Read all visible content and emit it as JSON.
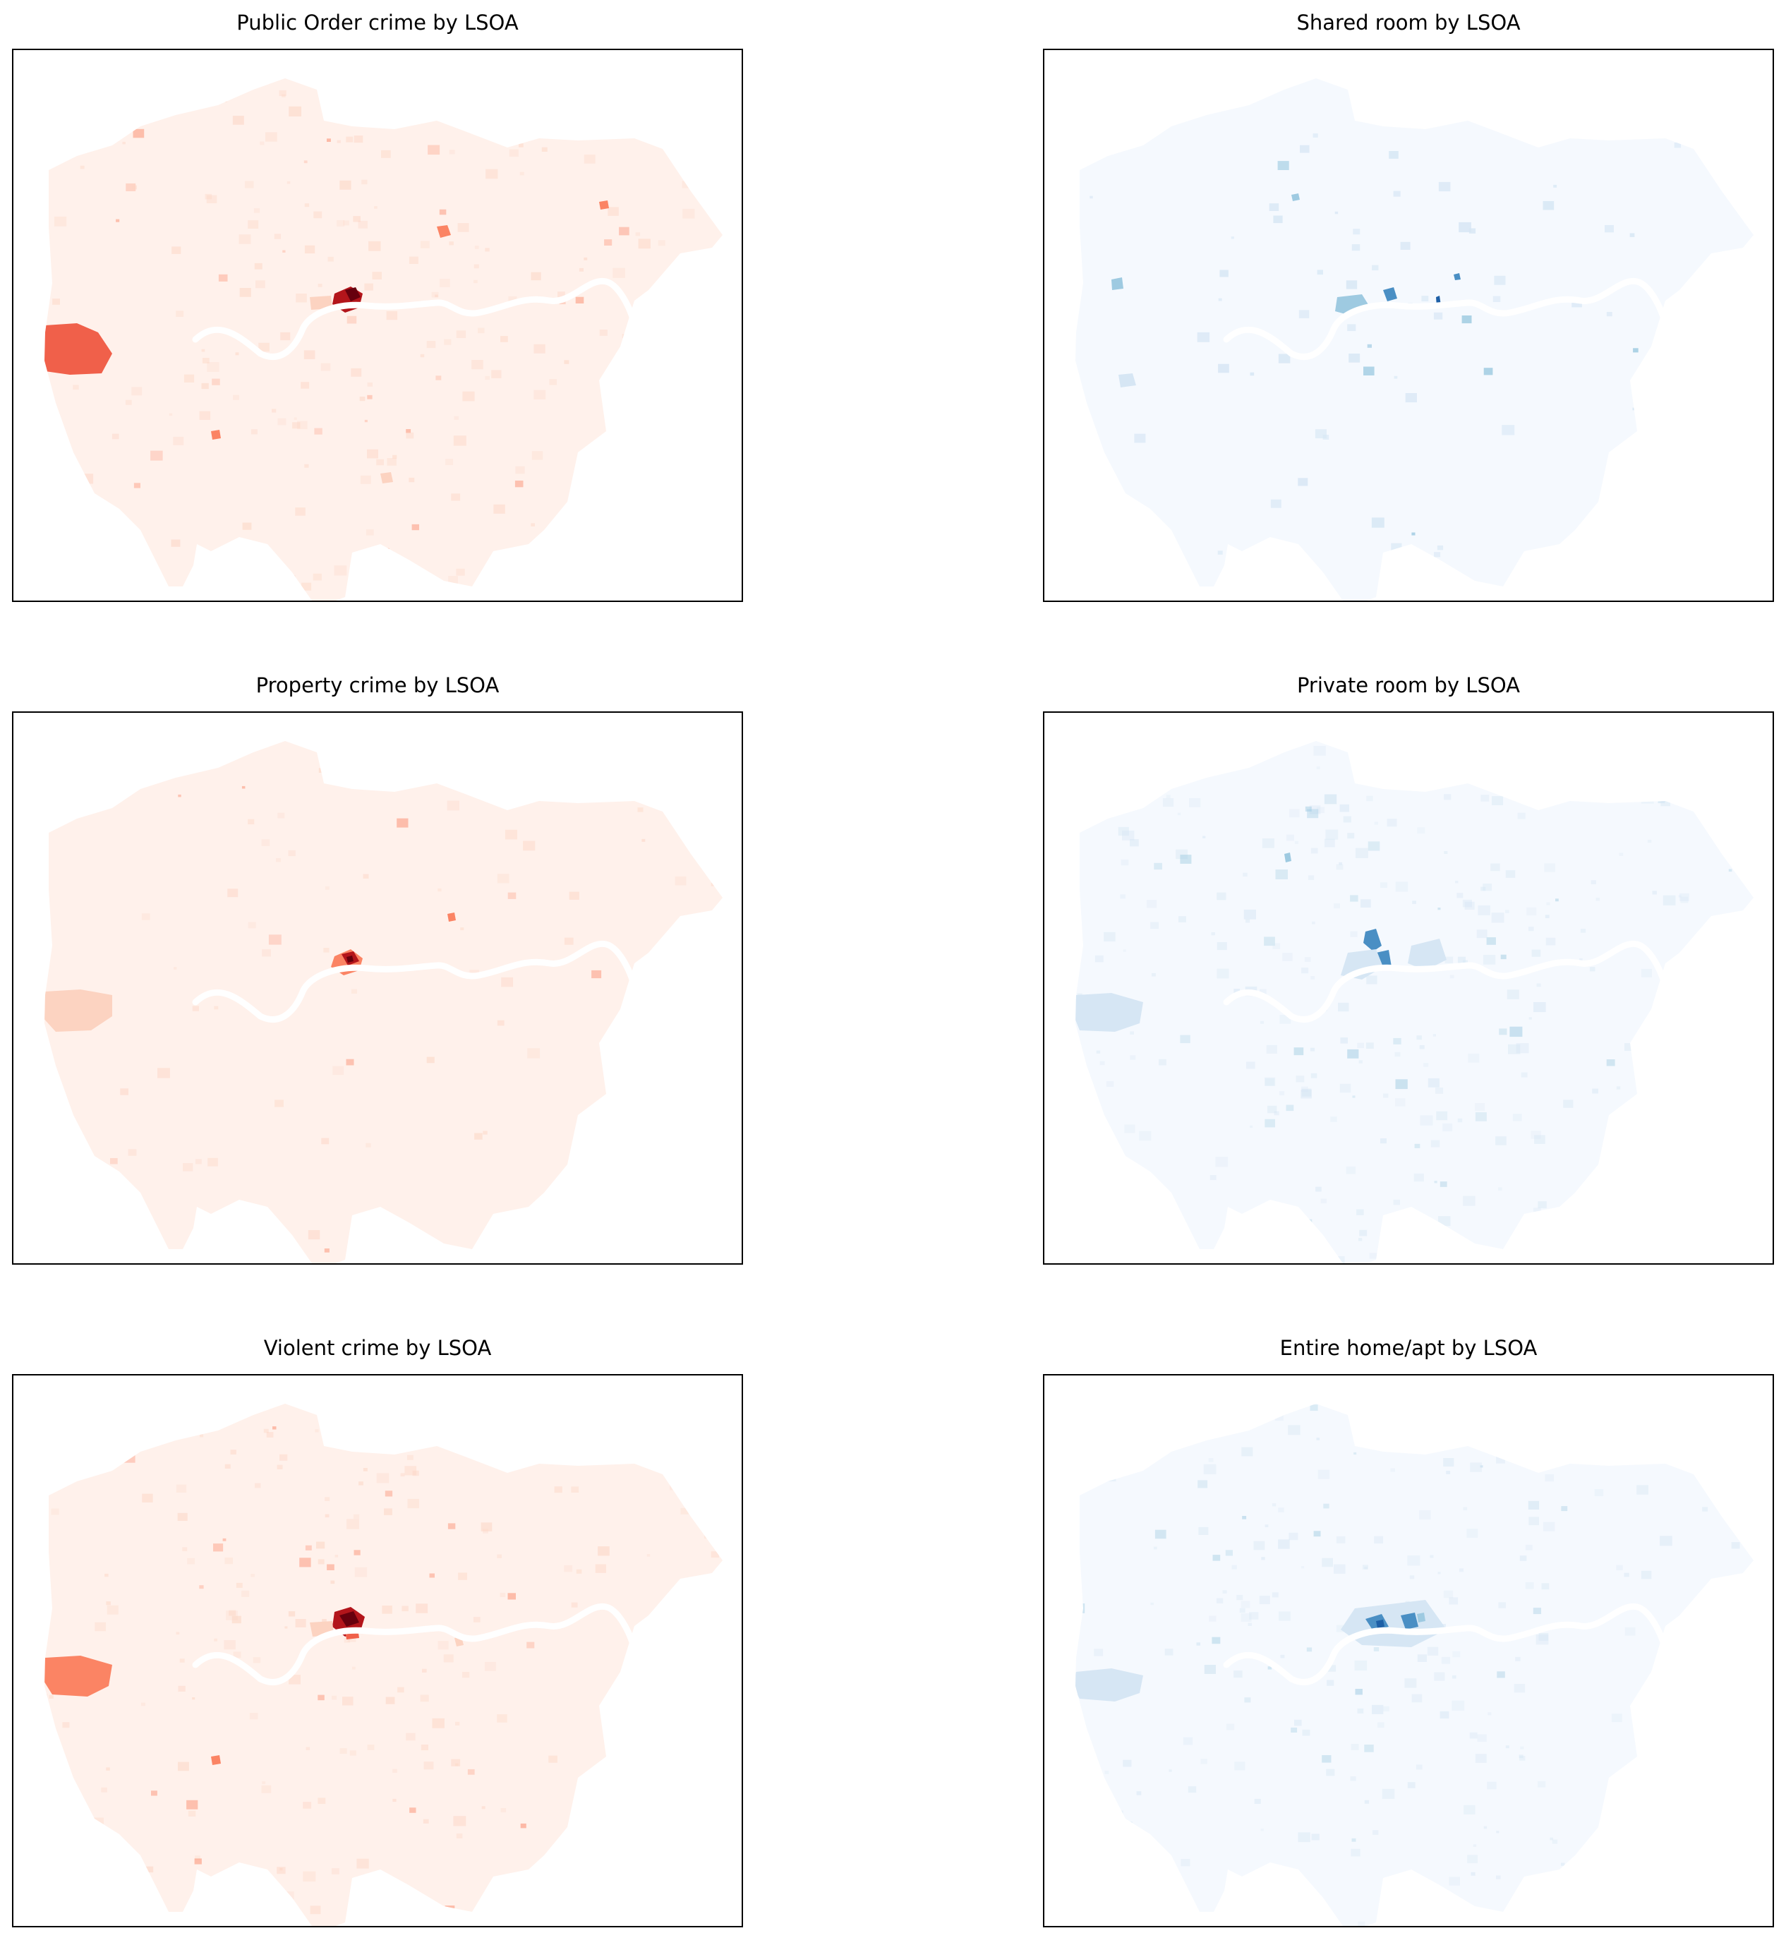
{
  "chart_data": [
    {
      "type": "choropleth",
      "title": "Public Order crime by LSOA",
      "colormap": "Reds",
      "xticks": [],
      "yticks": []
    },
    {
      "type": "choropleth",
      "title": "Shared room by LSOA",
      "colormap": "Blues",
      "xticks": [],
      "yticks": []
    },
    {
      "type": "choropleth",
      "title": "Property crime by LSOA",
      "colormap": "Reds",
      "xticks": [],
      "yticks": []
    },
    {
      "type": "choropleth",
      "title": "Private room by LSOA",
      "colormap": "Blues",
      "xticks": [],
      "yticks": []
    },
    {
      "type": "choropleth",
      "title": "Violent crime by LSOA",
      "colormap": "Reds",
      "xticks": [],
      "yticks": []
    },
    {
      "type": "choropleth",
      "title": "Entire home/apt by LSOA",
      "colormap": "Blues",
      "xticks": [],
      "yticks": []
    }
  ],
  "colors": {
    "reds": {
      "base": "#fff1eb",
      "light": "#fcd3c1",
      "mid": "#fb8464",
      "high": "#f0604a",
      "dark": "#b3151b",
      "darkest": "#67000d"
    },
    "blues": {
      "base": "#f5f9fe",
      "light": "#d6e6f4",
      "mid": "#9ecae1",
      "high": "#4a8fc4",
      "dark": "#1d5fa6",
      "darkest": "#08306b"
    }
  }
}
